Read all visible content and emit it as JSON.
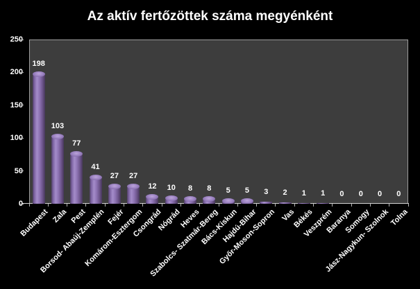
{
  "chart": {
    "title": "Az aktív fertőzöttek száma megyénként"
  },
  "chart_data": {
    "type": "bar",
    "title": "Az aktív fertőzöttek száma megyénként",
    "categories": [
      "Budapest",
      "Zala",
      "Pest",
      "Borsod- Abaúj-Zemplén",
      "Fejér",
      "Komárom-Esztergom",
      "Csongrád",
      "Nógrád",
      "Heves",
      "Szabolcs- Szatmár-Bereg",
      "Bács-Kiskun",
      "Hajdú-Bihar",
      "Győr-Moson-Sopron",
      "Vas",
      "Békés",
      "Veszprém",
      "Baranya",
      "Somogy",
      "Jász-Nagykun- Szolnok",
      "Tolna"
    ],
    "values": [
      198,
      103,
      77,
      41,
      27,
      27,
      12,
      10,
      8,
      8,
      5,
      5,
      3,
      2,
      1,
      1,
      0,
      0,
      0,
      0
    ],
    "data_labels_shown": true,
    "xlabel": "",
    "ylabel": "",
    "ylim": [
      0,
      250
    ],
    "yticks": [
      "0",
      "50",
      "100",
      "150",
      "200",
      "250"
    ],
    "grid": false,
    "legend": false,
    "colors": {
      "background": "#000000",
      "plot_background": "#3d3d3d",
      "bar": "#8064a2",
      "bar_highlight": "#a48cc9",
      "bar_shadow": "#463759",
      "axis_line": "#c0c0c0",
      "text": "#ffffff"
    }
  }
}
